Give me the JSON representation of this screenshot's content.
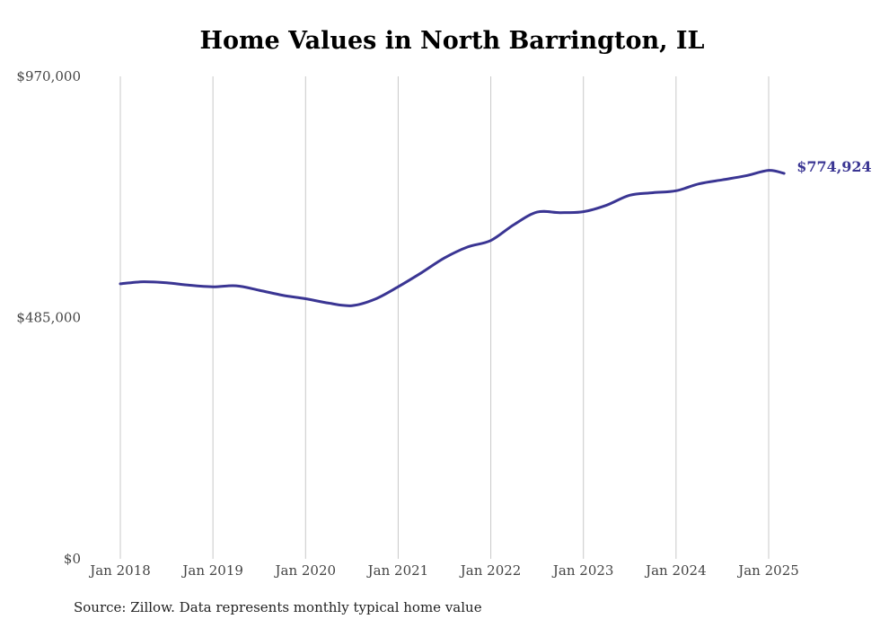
{
  "chart_data": {
    "type": "line",
    "title": "Home Values in North Barrington, IL",
    "xlabel": "",
    "ylabel": "",
    "ylim": [
      0,
      970000
    ],
    "y_ticks": [
      0,
      485000,
      970000
    ],
    "y_tick_labels": [
      "$0",
      "$485,000",
      "$970,000"
    ],
    "x_ticks": [
      "2018-01",
      "2019-01",
      "2020-01",
      "2021-01",
      "2022-01",
      "2023-01",
      "2024-01",
      "2025-01"
    ],
    "x_tick_labels": [
      "Jan 2018",
      "Jan 2019",
      "Jan 2020",
      "Jan 2021",
      "Jan 2022",
      "Jan 2023",
      "Jan 2024",
      "Jan 2025"
    ],
    "grid": "vertical",
    "end_label": "$774,924",
    "colors": {
      "line": "#3a3593",
      "grid": "#c8c8c8",
      "end_label": "#3a3593"
    },
    "series": [
      {
        "x": [
          "2018-01",
          "2018-04",
          "2018-07",
          "2018-10",
          "2019-01",
          "2019-04",
          "2019-07",
          "2019-10",
          "2020-01",
          "2020-04",
          "2020-07",
          "2020-10",
          "2021-01",
          "2021-04",
          "2021-07",
          "2021-10",
          "2022-01",
          "2022-04",
          "2022-07",
          "2022-10",
          "2023-01",
          "2023-04",
          "2023-07",
          "2023-10",
          "2024-01",
          "2024-04",
          "2024-07",
          "2024-10",
          "2025-01",
          "2025-03"
        ],
        "values": [
          553000,
          557000,
          555000,
          550000,
          547000,
          549000,
          540000,
          530000,
          523000,
          514000,
          509000,
          522000,
          547000,
          575000,
          605000,
          627000,
          640000,
          672000,
          697000,
          696000,
          698000,
          711000,
          731000,
          736000,
          740000,
          754000,
          762000,
          770000,
          781000,
          774924
        ]
      }
    ]
  },
  "source_note": "Source: Zillow. Data represents monthly typical home value"
}
